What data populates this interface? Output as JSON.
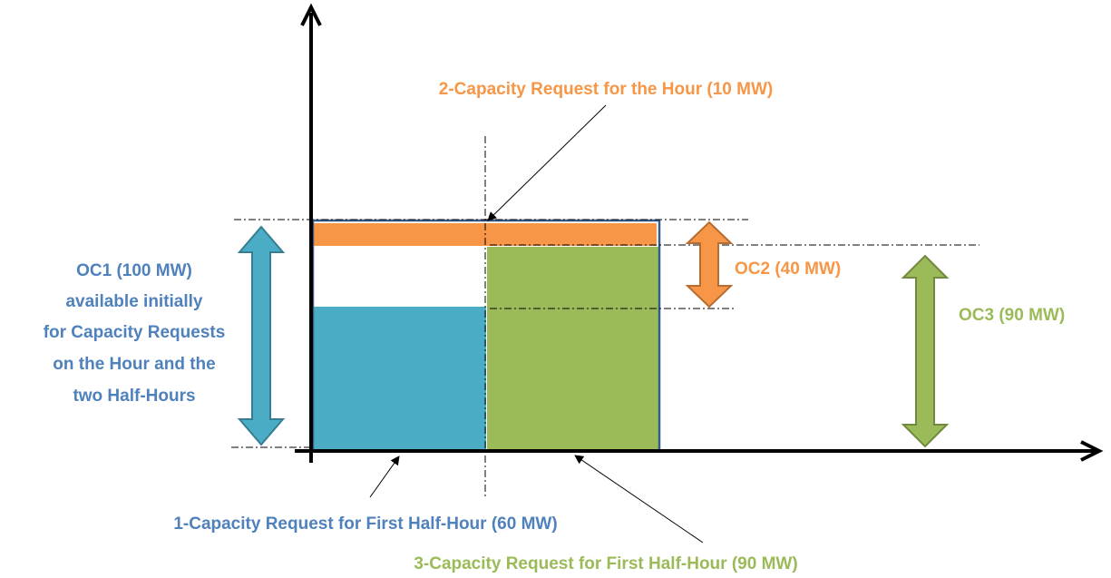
{
  "labels": {
    "request_hour": "2-Capacity Request for the Hour (10 MW)",
    "oc1": [
      "OC1 (100 MW)",
      "available initially",
      "for Capacity Requests",
      "on the Hour and the",
      "two Half-Hours"
    ],
    "oc2": "OC2 (40 MW)",
    "oc3": "OC3 (90 MW)",
    "request_first": "1-Capacity Request for First Half-Hour (60 MW)",
    "request_second": "3-Capacity Request for First Half-Hour (90 MW)"
  }
}
